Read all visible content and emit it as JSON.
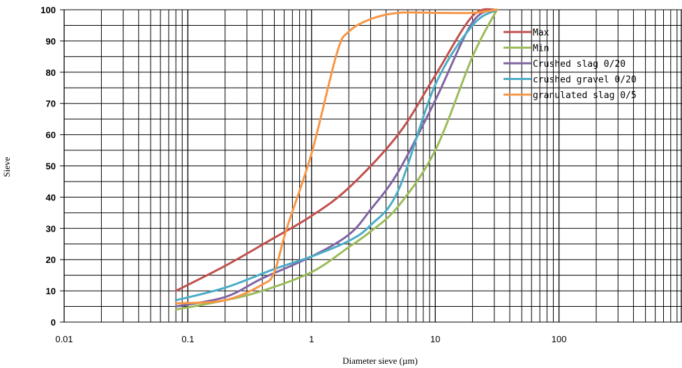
{
  "chart_data": {
    "type": "line",
    "xlabel": "Diameter sieve (µm)",
    "ylabel": "Sieve",
    "x_scale": "log",
    "xlim": [
      0.01,
      1000
    ],
    "ylim": [
      0,
      100
    ],
    "x_ticks": [
      "0.01",
      "0.1",
      "1",
      "10",
      "100"
    ],
    "y_ticks": [
      "0",
      "10",
      "20",
      "30",
      "40",
      "50",
      "60",
      "70",
      "80",
      "90",
      "100"
    ],
    "grid": true,
    "legend_position": "right",
    "series": [
      {
        "name": "Max",
        "color": "#c0504d",
        "points": [
          [
            0.08,
            10
          ],
          [
            0.2,
            18
          ],
          [
            0.5,
            27
          ],
          [
            1,
            34
          ],
          [
            2,
            43
          ],
          [
            5,
            60
          ],
          [
            10,
            79
          ],
          [
            20,
            98
          ],
          [
            31.5,
            100
          ]
        ]
      },
      {
        "name": "Min",
        "color": "#9bbb59",
        "points": [
          [
            0.08,
            4
          ],
          [
            0.2,
            7
          ],
          [
            0.4,
            10
          ],
          [
            1,
            16
          ],
          [
            2,
            24
          ],
          [
            3,
            29
          ],
          [
            5,
            37
          ],
          [
            10,
            55
          ],
          [
            20,
            85
          ],
          [
            31.5,
            100
          ]
        ]
      },
      {
        "name": "Crushed slag 0/20",
        "color": "#8064a2",
        "points": [
          [
            0.08,
            5
          ],
          [
            0.2,
            8
          ],
          [
            0.4,
            14
          ],
          [
            1,
            21
          ],
          [
            2,
            28
          ],
          [
            3,
            36
          ],
          [
            5,
            48
          ],
          [
            10,
            71
          ],
          [
            20,
            96
          ],
          [
            31.5,
            100
          ]
        ]
      },
      {
        "name": "crushed gravel 0/20",
        "color": "#4bacc6",
        "points": [
          [
            0.08,
            7
          ],
          [
            0.2,
            11
          ],
          [
            0.5,
            17
          ],
          [
            1,
            21
          ],
          [
            2,
            26
          ],
          [
            3,
            31
          ],
          [
            5,
            42
          ],
          [
            10,
            76
          ],
          [
            20,
            95
          ],
          [
            31.5,
            100
          ]
        ]
      },
      {
        "name": "granulated slag 0/5",
        "color": "#f79646",
        "points": [
          [
            0.08,
            6
          ],
          [
            0.2,
            7
          ],
          [
            0.4,
            12
          ],
          [
            0.5,
            16
          ],
          [
            0.63,
            30
          ],
          [
            1,
            54
          ],
          [
            1.6,
            86
          ],
          [
            2,
            93
          ],
          [
            3,
            97
          ],
          [
            5,
            99
          ],
          [
            10,
            99
          ],
          [
            20,
            99
          ],
          [
            31.5,
            100
          ]
        ]
      }
    ]
  }
}
